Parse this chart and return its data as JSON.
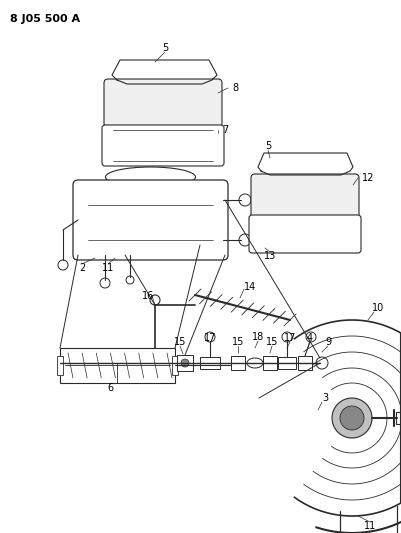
{
  "title": "8 J05 500 A",
  "bg_color": "#ffffff",
  "line_color": "#2a2a2a",
  "fig_width": 4.02,
  "fig_height": 5.33,
  "dpi": 100
}
